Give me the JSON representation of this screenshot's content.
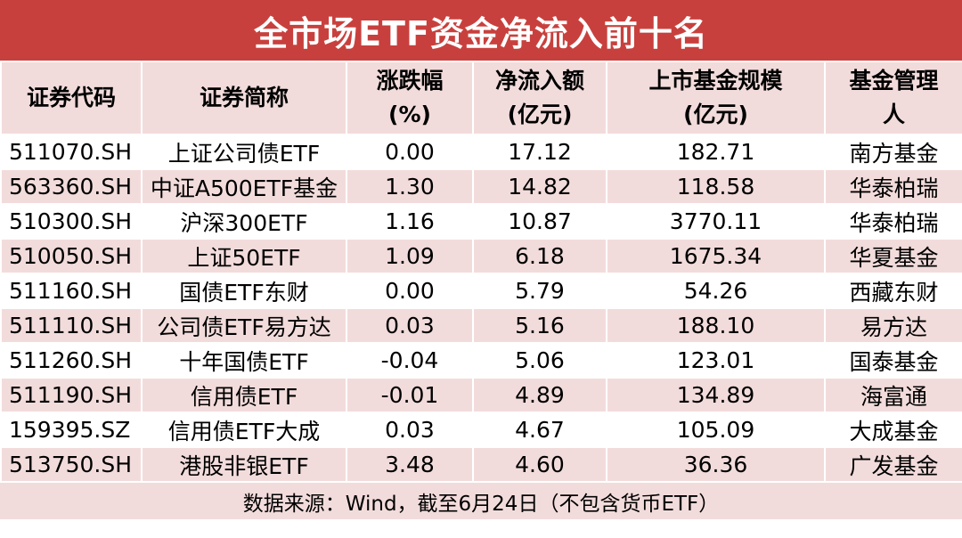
{
  "title": "全市场ETF资金净流入前十名",
  "table": {
    "header": [
      [
        "证券代码"
      ],
      [
        "证券简称"
      ],
      [
        "涨跌幅",
        "(%)"
      ],
      [
        "净流入额",
        "(亿元)"
      ],
      [
        "上市基金规模",
        "(亿元)"
      ],
      [
        "基金管理",
        "人"
      ]
    ],
    "rows": [
      [
        "511070.SH",
        "上证公司债ETF",
        "0.00",
        "17.12",
        "182.71",
        "南方基金"
      ],
      [
        "563360.SH",
        "中证A500ETF基金",
        "1.30",
        "14.82",
        "118.58",
        "华泰柏瑞"
      ],
      [
        "510300.SH",
        "沪深300ETF",
        "1.16",
        "10.87",
        "3770.11",
        "华泰柏瑞"
      ],
      [
        "510050.SH",
        "上证50ETF",
        "1.09",
        "6.18",
        "1675.34",
        "华夏基金"
      ],
      [
        "511160.SH",
        "国债ETF东财",
        "0.00",
        "5.79",
        "54.26",
        "西藏东财"
      ],
      [
        "511110.SH",
        "公司债ETF易方达",
        "0.03",
        "5.16",
        "188.10",
        "易方达"
      ],
      [
        "511260.SH",
        "十年国债ETF",
        "-0.04",
        "5.06",
        "123.01",
        "国泰基金"
      ],
      [
        "511190.SH",
        "信用债ETF",
        "-0.01",
        "4.89",
        "134.89",
        "海富通"
      ],
      [
        "159395.SZ",
        "信用债ETF大成",
        "0.03",
        "4.67",
        "105.09",
        "大成基金"
      ],
      [
        "513750.SH",
        "港股非银ETF",
        "3.48",
        "4.60",
        "36.36",
        "广发基金"
      ]
    ]
  },
  "footer": "数据来源：Wind，截至6月24日（不包含货币ETF）"
}
